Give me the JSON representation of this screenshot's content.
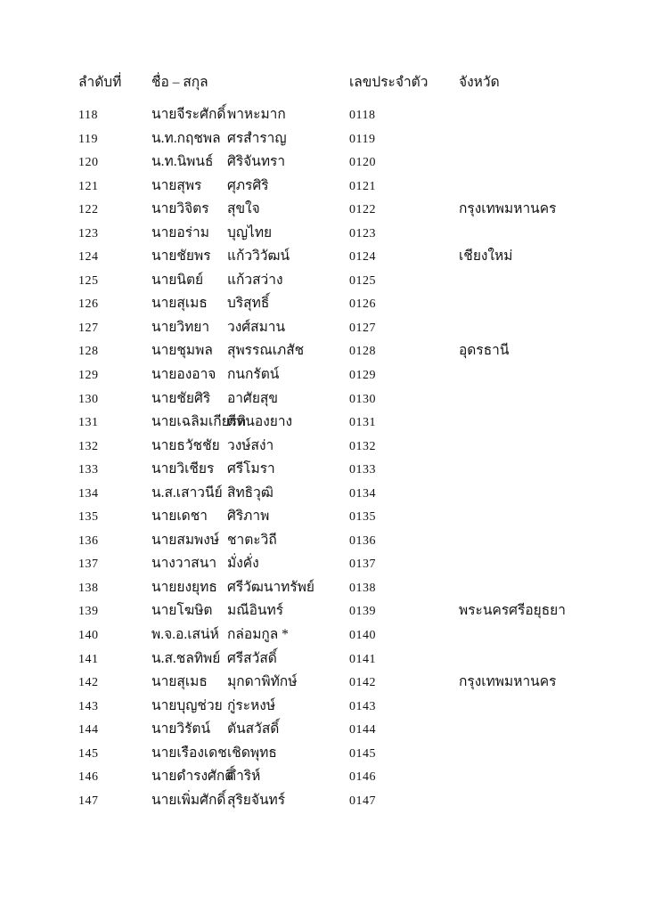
{
  "table": {
    "columns": {
      "no": "ลำดับที่",
      "name": "ชื่อ – สกุล",
      "id": "เลขประจำตัว",
      "province": "จังหวัด"
    },
    "rows": [
      {
        "no": "118",
        "first": "นายจีระศักดิ์",
        "last": "พาหะมาก",
        "id": "0118",
        "province": ""
      },
      {
        "no": "119",
        "first": "น.ท.กฤชพล",
        "last": "ศรสำราญ",
        "id": "0119",
        "province": ""
      },
      {
        "no": "120",
        "first": "น.ท.นิพนธ์",
        "last": "ศิริจันทรา",
        "id": "0120",
        "province": ""
      },
      {
        "no": "121",
        "first": "นายสุพร",
        "last": "ศุภรศิริ",
        "id": "0121",
        "province": ""
      },
      {
        "no": "122",
        "first": "นายวิจิตร",
        "last": "สุขใจ",
        "id": "0122",
        "province": "กรุงเทพมหานคร"
      },
      {
        "no": "123",
        "first": "นายอร่าม",
        "last": "บุญไทย",
        "id": "0123",
        "province": ""
      },
      {
        "no": "124",
        "first": "นายชัยพร",
        "last": "แก้ววิวัฒน์",
        "id": "0124",
        "province": "เชียงใหม่"
      },
      {
        "no": "125",
        "first": "นายนิตย์",
        "last": "แก้วสว่าง",
        "id": "0125",
        "province": ""
      },
      {
        "no": "126",
        "first": "นายสุเมธ",
        "last": "บริสุทธิ์",
        "id": "0126",
        "province": ""
      },
      {
        "no": "127",
        "first": "นายวิทยา",
        "last": "วงศ์สมาน",
        "id": "0127",
        "province": ""
      },
      {
        "no": "128",
        "first": "นายชุมพล",
        "last": "สุพรรณเภสัช",
        "id": "0128",
        "province": "อุดรธานี"
      },
      {
        "no": "129",
        "first": "นายองอาจ",
        "last": "กนกรัตน์",
        "id": "0129",
        "province": ""
      },
      {
        "no": "130",
        "first": "นายชัยศิริ",
        "last": "อาศัยสุข",
        "id": "0130",
        "province": ""
      },
      {
        "no": "131",
        "first": "นายเฉลิมเกียรติ",
        "last": "ดีหนองยาง",
        "id": "0131",
        "province": ""
      },
      {
        "no": "132",
        "first": "นายธวัชชัย",
        "last": "วงษ์สง่า",
        "id": "0132",
        "province": ""
      },
      {
        "no": "133",
        "first": "นายวิเชียร",
        "last": "ศรีโมรา",
        "id": "0133",
        "province": ""
      },
      {
        "no": "134",
        "first": "น.ส.เสาวนีย์",
        "last": "สิทธิวุฒิ",
        "id": "0134",
        "province": ""
      },
      {
        "no": "135",
        "first": "นายเดชา",
        "last": "ศิริภาพ",
        "id": "0135",
        "province": ""
      },
      {
        "no": "136",
        "first": "นายสมพงษ์",
        "last": "ชาตะวิถี",
        "id": "0136",
        "province": ""
      },
      {
        "no": "137",
        "first": "นางวาสนา",
        "last": "มั่งคั่ง",
        "id": "0137",
        "province": ""
      },
      {
        "no": "138",
        "first": "นายยงยุทธ",
        "last": "ศรีวัฒนาทรัพย์",
        "id": "0138",
        "province": ""
      },
      {
        "no": "139",
        "first": "นายโฆษิต",
        "last": "มณีอินทร์",
        "id": "0139",
        "province": "พระนครศรีอยุธยา"
      },
      {
        "no": "140",
        "first": "พ.จ.อ.เสน่ห์",
        "last": "กล่อมกูล *",
        "id": "0140",
        "province": ""
      },
      {
        "no": "141",
        "first": "น.ส.ชลทิพย์",
        "last": "ศรีสวัสดิ์",
        "id": "0141",
        "province": ""
      },
      {
        "no": "142",
        "first": "นายสุเมธ",
        "last": "มุกดาพิทักษ์",
        "id": "0142",
        "province": "กรุงเทพมหานคร"
      },
      {
        "no": "143",
        "first": "นายบุญช่วย",
        "last": "กู่ระหงษ์",
        "id": "0143",
        "province": ""
      },
      {
        "no": "144",
        "first": "นายวิรัตน์",
        "last": "ตันสวัสดิ์",
        "id": "0144",
        "province": ""
      },
      {
        "no": "145",
        "first": "นายเรืองเดช",
        "last": "เชิดพุทธ",
        "id": "0145",
        "province": ""
      },
      {
        "no": "146",
        "first": "นายดำรงศักดิ์",
        "last": "ดำริห์",
        "id": "0146",
        "province": ""
      },
      {
        "no": "147",
        "first": "นายเพิ่มศักดิ์",
        "last": "สุริยจันทร์",
        "id": "0147",
        "province": ""
      }
    ]
  }
}
